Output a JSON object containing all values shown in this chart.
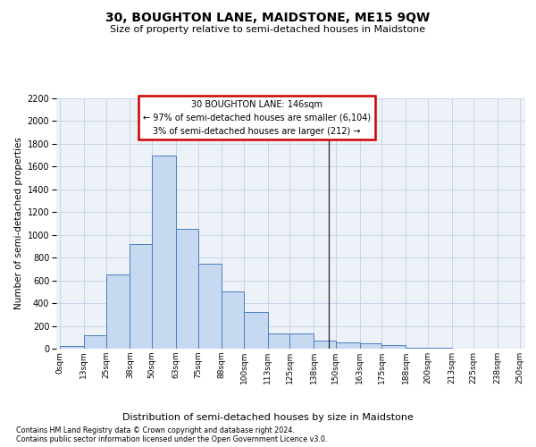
{
  "title": "30, BOUGHTON LANE, MAIDSTONE, ME15 9QW",
  "subtitle": "Size of property relative to semi-detached houses in Maidstone",
  "xlabel": "Distribution of semi-detached houses by size in Maidstone",
  "ylabel": "Number of semi-detached properties",
  "footnote1": "Contains HM Land Registry data © Crown copyright and database right 2024.",
  "footnote2": "Contains public sector information licensed under the Open Government Licence v3.0.",
  "annotation_title": "30 BOUGHTON LANE: 146sqm",
  "annotation_line1": "← 97% of semi-detached houses are smaller (6,104)",
  "annotation_line2": "3% of semi-detached houses are larger (212) →",
  "property_size": 146,
  "bin_edges": [
    0,
    13,
    25,
    38,
    50,
    63,
    75,
    88,
    100,
    113,
    125,
    138,
    150,
    163,
    175,
    188,
    200,
    213,
    225,
    238,
    250
  ],
  "bin_labels": [
    "0sqm",
    "13sqm",
    "25sqm",
    "38sqm",
    "50sqm",
    "63sqm",
    "75sqm",
    "88sqm",
    "100sqm",
    "113sqm",
    "125sqm",
    "138sqm",
    "150sqm",
    "163sqm",
    "175sqm",
    "188sqm",
    "200sqm",
    "213sqm",
    "225sqm",
    "238sqm",
    "250sqm"
  ],
  "values": [
    20,
    120,
    650,
    920,
    1700,
    1050,
    750,
    500,
    320,
    130,
    130,
    70,
    55,
    45,
    35,
    10,
    5,
    3,
    2,
    1
  ],
  "bar_color": "#c6d9f0",
  "bar_edge_color": "#4a7ec0",
  "vline_color": "#222222",
  "annotation_box_edgecolor": "#cc0000",
  "grid_color": "#c8d4e8",
  "bg_color": "#edf1f8",
  "ylim_max": 2200,
  "ytick_step": 200
}
